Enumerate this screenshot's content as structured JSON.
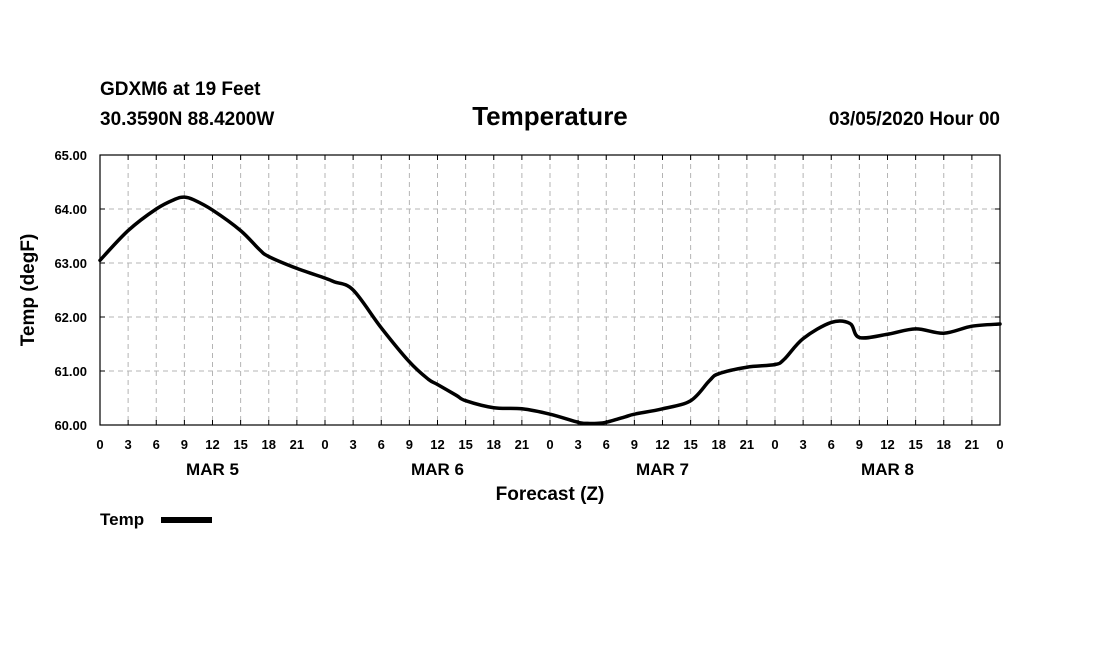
{
  "header": {
    "station": "GDXM6 at 19 Feet",
    "coords": "30.3590N 88.4200W",
    "run": "03/05/2020 Hour 00"
  },
  "colors": {
    "series": "#000000",
    "grid": "#b4b4b4",
    "frame": "#000000"
  },
  "chart_data": {
    "type": "line",
    "title": "Temperature",
    "xlabel": "Forecast (Z)",
    "ylabel": "Temp (degF)",
    "xlim": [
      0,
      96
    ],
    "ylim": [
      60,
      65
    ],
    "grid": true,
    "legend": "bottom-left",
    "y_ticks": [
      60,
      61,
      62,
      63,
      64,
      65
    ],
    "y_tick_labels": [
      "60.00",
      "61.00",
      "62.00",
      "63.00",
      "64.00",
      "65.00"
    ],
    "x_ticks": [
      0,
      3,
      6,
      9,
      12,
      15,
      18,
      21,
      24,
      27,
      30,
      33,
      36,
      39,
      42,
      45,
      48,
      51,
      54,
      57,
      60,
      63,
      66,
      69,
      72,
      75,
      78,
      81,
      84,
      87,
      90,
      93,
      96
    ],
    "x_tick_labels": [
      "0",
      "3",
      "6",
      "9",
      "12",
      "15",
      "18",
      "21",
      "0",
      "3",
      "6",
      "9",
      "12",
      "15",
      "18",
      "21",
      "0",
      "3",
      "6",
      "9",
      "12",
      "15",
      "18",
      "21",
      "0",
      "3",
      "6",
      "9",
      "12",
      "15",
      "18",
      "21",
      "0"
    ],
    "day_labels": [
      {
        "label": "MAR 5",
        "center_hour": 12
      },
      {
        "label": "MAR 6",
        "center_hour": 36
      },
      {
        "label": "MAR 7",
        "center_hour": 60
      },
      {
        "label": "MAR 8",
        "center_hour": 84
      }
    ],
    "series": [
      {
        "name": "Temp",
        "x": [
          0,
          3,
          6,
          8,
          9,
          10,
          12,
          15,
          17,
          18,
          21,
          24,
          25,
          27,
          30,
          33,
          35,
          36,
          38,
          39,
          42,
          45,
          48,
          51,
          52,
          53,
          54,
          56,
          57,
          60,
          63,
          65,
          66,
          69,
          72,
          73,
          75,
          78,
          80,
          81,
          84,
          87,
          90,
          93,
          96
        ],
        "values": [
          63.05,
          63.6,
          64.0,
          64.18,
          64.22,
          64.17,
          63.98,
          63.6,
          63.25,
          63.12,
          62.9,
          62.72,
          62.65,
          62.5,
          61.8,
          61.17,
          60.85,
          60.75,
          60.55,
          60.45,
          60.32,
          60.3,
          60.2,
          60.05,
          60.03,
          60.03,
          60.05,
          60.15,
          60.2,
          60.3,
          60.45,
          60.82,
          60.95,
          61.07,
          61.12,
          61.22,
          61.6,
          61.9,
          61.88,
          61.62,
          61.68,
          61.78,
          61.7,
          61.83,
          61.87
        ]
      }
    ]
  },
  "legend": {
    "label": "Temp"
  }
}
